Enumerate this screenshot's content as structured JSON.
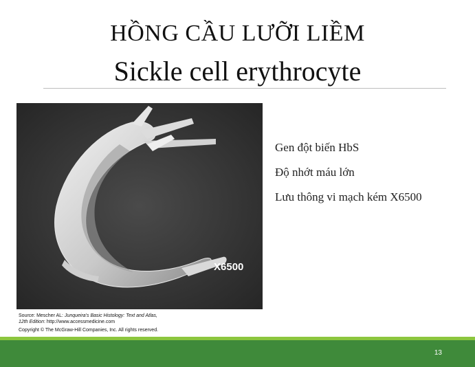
{
  "slide": {
    "title_vietnamese": "HỒNG CẦU LƯỠI LIỀM",
    "title_english": "Sickle cell erythrocyte",
    "page_number": "13"
  },
  "figure": {
    "magnification_label": "X6500",
    "source_prefix": "Source: Mescher AL: ",
    "source_book": "Junqueira's Basic Histology: Text and Atlas,",
    "source_edition": "12th Edition",
    "source_url": ": http://www.accessmedicine.com",
    "copyright": "Copyright © The McGraw-Hill Companies, Inc. All rights reserved."
  },
  "bullets": [
    "Gen đột biến HbS",
    "Độ nhớt máu lớn",
    "Lưu thông vi mạch kém X6500"
  ],
  "colors": {
    "footer_dark": "#3f8a3a",
    "footer_light": "#8cc63e",
    "rule": "#bdbdbd"
  }
}
